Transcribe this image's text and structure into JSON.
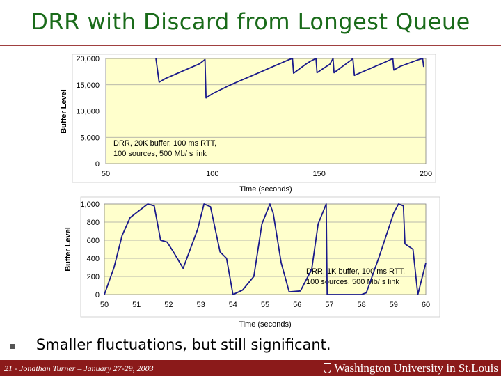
{
  "slide": {
    "title": "DRR with Discard from Longest Queue",
    "bullet": "Smaller fluctuations, but still significant.",
    "footer": "21 - Jonathan Turner – January 27-29, 2003",
    "logo_text": "Washington University in St.Louis"
  },
  "colors": {
    "title": "#1a6b1a",
    "plot_bg": "#ffffcc",
    "series": "#1a1a8b",
    "footer_bar": "#8b1a1a"
  },
  "chart_data": [
    {
      "type": "line",
      "xlabel": "Time (seconds)",
      "ylabel": "Buffer Level",
      "xlim": [
        50,
        200
      ],
      "ylim": [
        0,
        20000
      ],
      "xticks": [
        50,
        100,
        150,
        200
      ],
      "yticks": [
        0,
        5000,
        10000,
        15000,
        20000
      ],
      "xtick_labels": [
        "50",
        "100",
        "150",
        "200"
      ],
      "ytick_labels": [
        "0",
        "5,000",
        "10,000",
        "15,000",
        "20,000"
      ],
      "grid": true,
      "annotation": [
        "DRR, 20K buffer,  100 ms RTT,",
        "100 sources, 500 Mb/ s link"
      ],
      "series": [
        {
          "x": [
            73.5,
            75,
            78,
            82,
            86,
            90,
            94,
            96.5,
            97,
            100,
            104,
            108,
            112,
            116,
            120,
            124,
            128,
            132,
            136,
            137.5,
            138,
            140,
            142,
            144,
            146,
            148.5,
            149,
            152,
            155,
            156.5,
            157,
            159,
            161,
            163,
            165,
            165.8,
            166.5,
            170,
            174,
            178,
            182,
            184.5,
            185,
            188,
            192,
            196,
            198.5,
            199
          ],
          "y": [
            20000,
            15500,
            16200,
            16900,
            17600,
            18300,
            19000,
            19800,
            12500,
            13300,
            14100,
            14900,
            15600,
            16300,
            17000,
            17700,
            18400,
            19100,
            19800,
            20000,
            17200,
            17800,
            18400,
            19000,
            19500,
            20000,
            17300,
            18100,
            18900,
            20000,
            17300,
            17900,
            18500,
            19100,
            19700,
            20000,
            16800,
            17400,
            18100,
            18800,
            19500,
            20000,
            17800,
            18500,
            19100,
            19700,
            20000,
            18400
          ]
        }
      ]
    },
    {
      "type": "line",
      "xlabel": "Time (seconds)",
      "ylabel": "Buffer Level",
      "xlim": [
        50,
        60
      ],
      "ylim": [
        0,
        1000
      ],
      "xticks": [
        50,
        51,
        52,
        53,
        54,
        55,
        56,
        57,
        58,
        59,
        60
      ],
      "yticks": [
        0,
        200,
        400,
        600,
        800,
        1000
      ],
      "xtick_labels": [
        "50",
        "51",
        "52",
        "53",
        "54",
        "55",
        "56",
        "57",
        "58",
        "59",
        "60"
      ],
      "ytick_labels": [
        "0",
        "200",
        "400",
        "600",
        "800",
        "1,000"
      ],
      "grid": true,
      "annotation": [
        "DRR, 1K buffer, 100 ms RTT,",
        "100 sources, 500 Mb/ s link"
      ],
      "series": [
        {
          "x": [
            50,
            50.3,
            50.55,
            50.8,
            51.35,
            51.55,
            51.75,
            51.95,
            52.15,
            52.45,
            52.9,
            53.1,
            53.3,
            53.6,
            53.8,
            54.0,
            54.3,
            54.65,
            54.9,
            55.15,
            55.25,
            55.5,
            55.75,
            56.1,
            56.45,
            56.65,
            56.9,
            56.93,
            57.5,
            58.0,
            58.15,
            58.55,
            59.0,
            59.15,
            59.3,
            59.35,
            59.6,
            59.75,
            60.0
          ],
          "y": [
            0,
            300,
            650,
            850,
            1000,
            980,
            600,
            580,
            470,
            290,
            720,
            1000,
            970,
            470,
            400,
            0,
            50,
            200,
            780,
            1000,
            900,
            350,
            30,
            40,
            280,
            780,
            1000,
            0,
            0,
            0,
            20,
            420,
            900,
            1000,
            980,
            560,
            500,
            0,
            350
          ]
        }
      ]
    }
  ]
}
